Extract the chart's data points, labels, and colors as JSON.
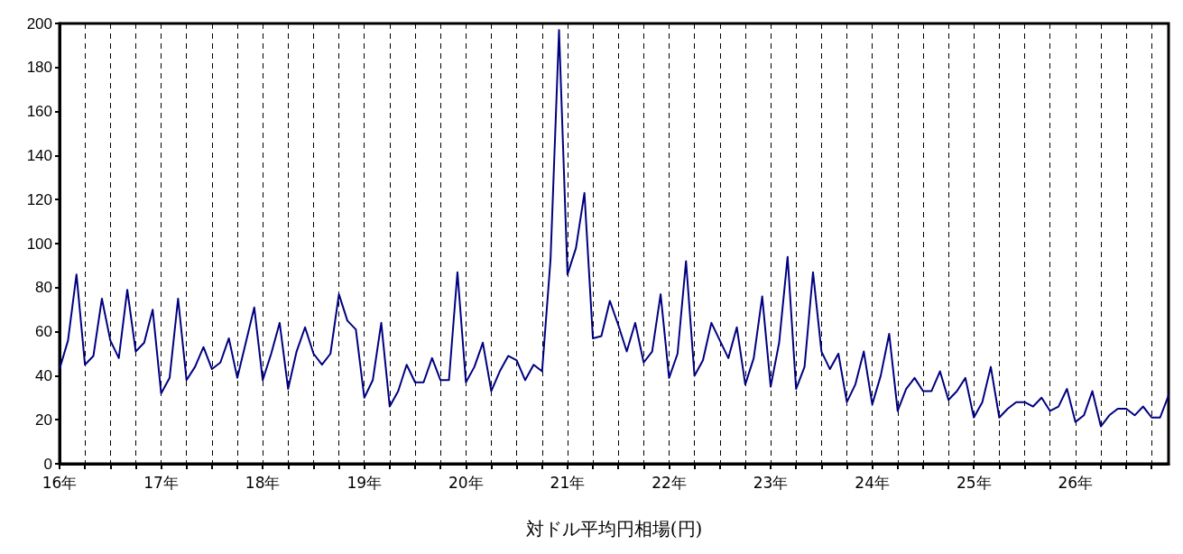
{
  "chart_data": {
    "type": "line",
    "xlabel": "対ドル平均円相場(円)",
    "categories": [
      "16年",
      null,
      null,
      null,
      null,
      null,
      null,
      null,
      null,
      null,
      null,
      null,
      "17年",
      null,
      null,
      null,
      null,
      null,
      null,
      null,
      null,
      null,
      null,
      null,
      "18年",
      null,
      null,
      null,
      null,
      null,
      null,
      null,
      null,
      null,
      null,
      null,
      "19年",
      null,
      null,
      null,
      null,
      null,
      null,
      null,
      null,
      null,
      null,
      null,
      "20年",
      null,
      null,
      null,
      null,
      null,
      null,
      null,
      null,
      null,
      null,
      null,
      "21年",
      null,
      null,
      null,
      null,
      null,
      null,
      null,
      null,
      null,
      null,
      null,
      "22年",
      null,
      null,
      null,
      null,
      null,
      null,
      null,
      null,
      null,
      null,
      null,
      "23年",
      null,
      null,
      null,
      null,
      null,
      null,
      null,
      null,
      null,
      null,
      null,
      "24年",
      null,
      null,
      null,
      null,
      null,
      null,
      null,
      null,
      null,
      null,
      null,
      "25年",
      null,
      null,
      null,
      null,
      null,
      null,
      null,
      null,
      null,
      null,
      null,
      "26年",
      null,
      null,
      null,
      null,
      null,
      null,
      null,
      null,
      null,
      null,
      null
    ],
    "series": [
      {
        "color": "#000080",
        "values": [
          43,
          56,
          86,
          45,
          49,
          75,
          56,
          48,
          79,
          51,
          55,
          70,
          32,
          39,
          75,
          38,
          44,
          53,
          43,
          46,
          57,
          39,
          55,
          71,
          38,
          50,
          64,
          34,
          51,
          62,
          50,
          45,
          50,
          77,
          65,
          61,
          30,
          38,
          64,
          26,
          33,
          45,
          37,
          37,
          48,
          38,
          38,
          87,
          37,
          44,
          55,
          33,
          42,
          49,
          47,
          38,
          45,
          42,
          93,
          197,
          86,
          98,
          123,
          57,
          58,
          74,
          63,
          51,
          64,
          46,
          51,
          77,
          39,
          50,
          92,
          40,
          47,
          64,
          56,
          48,
          62,
          36,
          48,
          76,
          35,
          55,
          94,
          34,
          44,
          87,
          51,
          43,
          50,
          28,
          36,
          51,
          27,
          40,
          59,
          24,
          34,
          39,
          33,
          33,
          42,
          29,
          33,
          39,
          21,
          28,
          44,
          21,
          25,
          28,
          28,
          26,
          30,
          24,
          26,
          34,
          19,
          22,
          33,
          17,
          22,
          25,
          25,
          22,
          26,
          21,
          21,
          31
        ]
      }
    ],
    "ylim": [
      0,
      200
    ],
    "yticks": [
      0,
      20,
      40,
      60,
      80,
      100,
      120,
      140,
      160,
      180,
      200
    ],
    "grid": "x",
    "marker": "none",
    "line_style": "solid"
  }
}
